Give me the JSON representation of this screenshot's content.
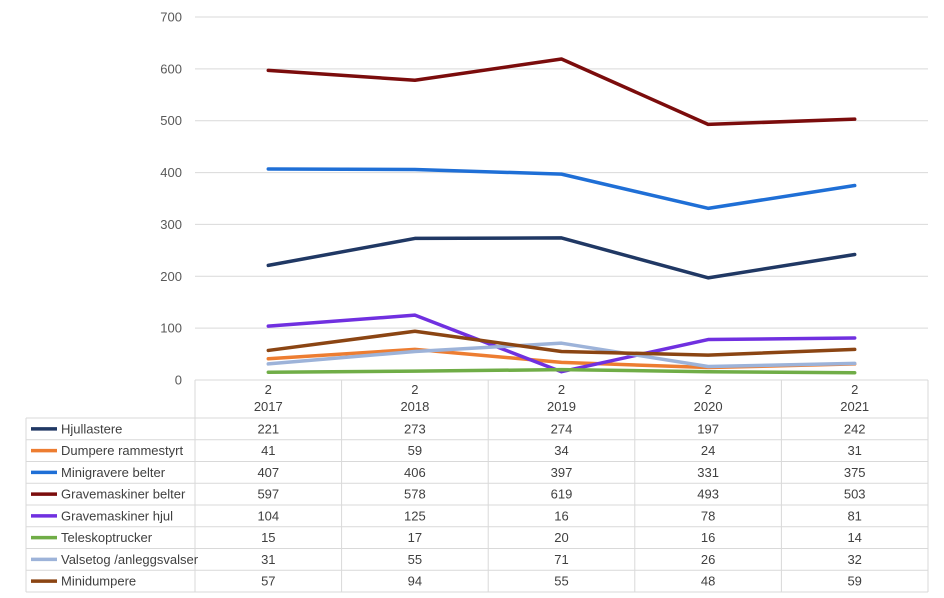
{
  "chart_data": {
    "type": "line",
    "title": "",
    "xlabel": "",
    "ylabel": "",
    "ylim": [
      0,
      700
    ],
    "yticks": [
      0,
      100,
      200,
      300,
      400,
      500,
      600,
      700
    ],
    "grid": true,
    "legend": "data-table",
    "categories": [
      {
        "top": "2",
        "bottom": "2017"
      },
      {
        "top": "2",
        "bottom": "2018"
      },
      {
        "top": "2",
        "bottom": "2019"
      },
      {
        "top": "2",
        "bottom": "2020"
      },
      {
        "top": "2",
        "bottom": "2021"
      }
    ],
    "series": [
      {
        "name": "Hjullastere",
        "color": "#203864",
        "values": [
          221,
          273,
          274,
          197,
          242
        ]
      },
      {
        "name": "Dumpere rammestyrt",
        "color": "#ED7D31",
        "values": [
          41,
          59,
          34,
          24,
          31
        ]
      },
      {
        "name": "Minigravere belter",
        "color": "#1F6FD6",
        "values": [
          407,
          406,
          397,
          331,
          375
        ]
      },
      {
        "name": "Gravemaskiner belter",
        "color": "#7B0C0C",
        "values": [
          597,
          578,
          619,
          493,
          503
        ]
      },
      {
        "name": "Gravemaskiner hjul",
        "color": "#7030E0",
        "values": [
          104,
          125,
          16,
          78,
          81
        ]
      },
      {
        "name": "Teleskoptrucker",
        "color": "#70AD47",
        "values": [
          15,
          17,
          20,
          16,
          14
        ]
      },
      {
        "name": "Valsetog /anleggsvalser",
        "color": "#9DB3D9",
        "values": [
          31,
          55,
          71,
          26,
          32
        ]
      },
      {
        "name": "Minidumpere",
        "color": "#8B4513",
        "values": [
          57,
          94,
          55,
          48,
          59
        ]
      }
    ]
  }
}
